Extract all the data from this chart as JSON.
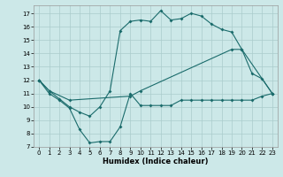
{
  "title": "",
  "xlabel": "Humidex (Indice chaleur)",
  "background_color": "#cce8e8",
  "grid_color": "#aacccc",
  "line_color": "#1a6b6b",
  "xlim": [
    -0.5,
    23.5
  ],
  "ylim": [
    7,
    17.6
  ],
  "yticks": [
    7,
    8,
    9,
    10,
    11,
    12,
    13,
    14,
    15,
    16,
    17
  ],
  "xticks": [
    0,
    1,
    2,
    3,
    4,
    5,
    6,
    7,
    8,
    9,
    10,
    11,
    12,
    13,
    14,
    15,
    16,
    17,
    18,
    19,
    20,
    21,
    22,
    23
  ],
  "line1_x": [
    0,
    1,
    2,
    3,
    4,
    5,
    6,
    7,
    8,
    9,
    10,
    11,
    12,
    13,
    14,
    15,
    16,
    17,
    18,
    19,
    20,
    21,
    22,
    23
  ],
  "line1_y": [
    12,
    11,
    10.5,
    9.9,
    8.3,
    7.3,
    7.4,
    7.4,
    8.5,
    11.0,
    10.1,
    10.1,
    10.1,
    10.1,
    10.5,
    10.5,
    10.5,
    10.5,
    10.5,
    10.5,
    10.5,
    10.5,
    10.8,
    11.0
  ],
  "line2_x": [
    0,
    1,
    3,
    9,
    10,
    19,
    20,
    23
  ],
  "line2_y": [
    12,
    11.2,
    10.5,
    10.8,
    11.2,
    14.3,
    14.3,
    11.0
  ],
  "line3_x": [
    0,
    1,
    2,
    3,
    4,
    5,
    6,
    7,
    8,
    9,
    10,
    11,
    12,
    13,
    14,
    15,
    16,
    17,
    18,
    19,
    20,
    21,
    22,
    23
  ],
  "line3_y": [
    12,
    11.2,
    10.6,
    10.0,
    9.6,
    9.3,
    10.0,
    11.2,
    15.7,
    16.4,
    16.5,
    16.4,
    17.2,
    16.5,
    16.6,
    17.0,
    16.8,
    16.2,
    15.8,
    15.6,
    14.3,
    12.5,
    12.1,
    11.0
  ]
}
